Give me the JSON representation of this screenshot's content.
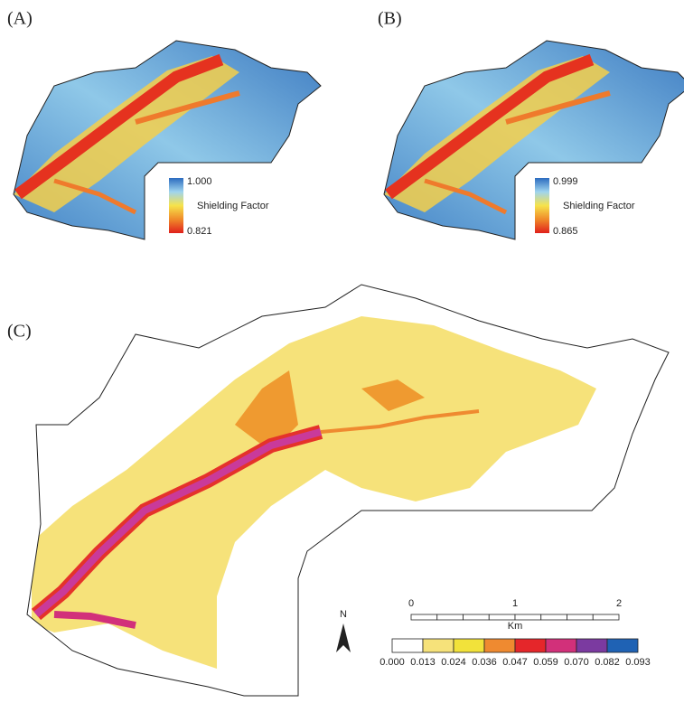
{
  "panels": [
    {
      "label": "(A)",
      "legend": {
        "max": "1.000",
        "title": "Shielding Factor",
        "min": "0.821"
      }
    },
    {
      "label": "(B)",
      "legend": {
        "max": "0.999",
        "title": "Shielding Factor",
        "min": "0.865"
      }
    },
    {
      "label": "(C)",
      "legend": {
        "breaks": [
          "0.000",
          "0.013",
          "0.024",
          "0.036",
          "0.047",
          "0.059",
          "0.070",
          "0.082",
          "0.093"
        ]
      },
      "scale_bar": {
        "ticks": [
          "0",
          "1",
          "2"
        ],
        "unit": "Km"
      },
      "north": "N"
    }
  ]
}
